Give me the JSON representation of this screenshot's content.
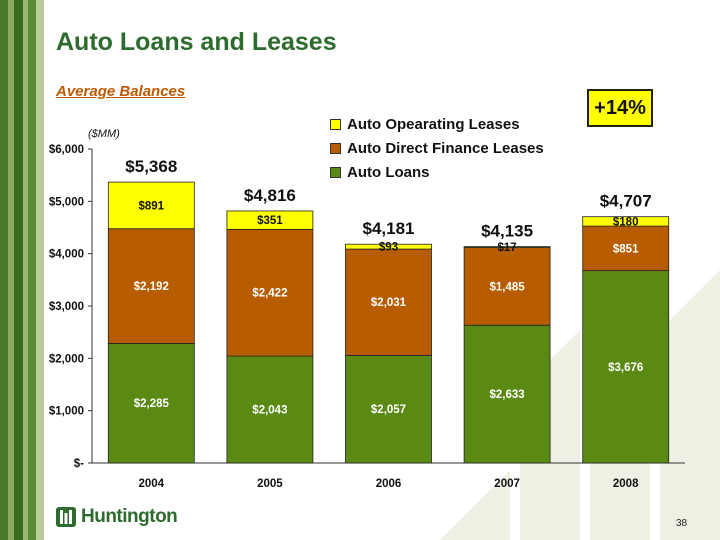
{
  "slide": {
    "title": "Auto Loans and Leases",
    "subtitle": "Average Balances",
    "badge": "+14%",
    "logo_text": "Huntington",
    "page_number": "38"
  },
  "colors": {
    "loans": "#5a8a13",
    "direct_finance": "#b85c00",
    "operating": "#ffff00",
    "title_green": "#2e6b2e",
    "subtitle_orange": "#c05a00"
  },
  "chart_data": {
    "type": "bar",
    "stacked": true,
    "unit_label": "($MM)",
    "categories": [
      "2004",
      "2005",
      "2006",
      "2007",
      "2008"
    ],
    "series": [
      {
        "name": "Auto Loans",
        "values": [
          2285,
          2043,
          2057,
          2633,
          3676
        ],
        "labels": [
          "$2,285",
          "$2,043",
          "$2,057",
          "$2,633",
          "$3,676"
        ]
      },
      {
        "name": "Auto Direct Finance Leases",
        "values": [
          2192,
          2422,
          2031,
          1485,
          851
        ],
        "labels": [
          "$2,192",
          "$2,422",
          "$2,031",
          "$1,485",
          "$851"
        ]
      },
      {
        "name": "Auto Opearating Leases",
        "values": [
          891,
          351,
          93,
          17,
          180
        ],
        "labels": [
          "$891",
          "$351",
          "$93",
          "$17",
          "$180"
        ]
      }
    ],
    "totals": [
      5368,
      4816,
      4181,
      4135,
      4707
    ],
    "total_labels": [
      "$5,368",
      "$4,816",
      "$4,181",
      "$4,135",
      "$4,707"
    ],
    "ylim": [
      0,
      6000
    ],
    "yticks": [
      0,
      1000,
      2000,
      3000,
      4000,
      5000,
      6000
    ],
    "ytick_labels": [
      "$-",
      "$1,000",
      "$2,000",
      "$3,000",
      "$4,000",
      "$5,000",
      "$6,000"
    ],
    "legend_position": "top-right",
    "grid": false
  }
}
